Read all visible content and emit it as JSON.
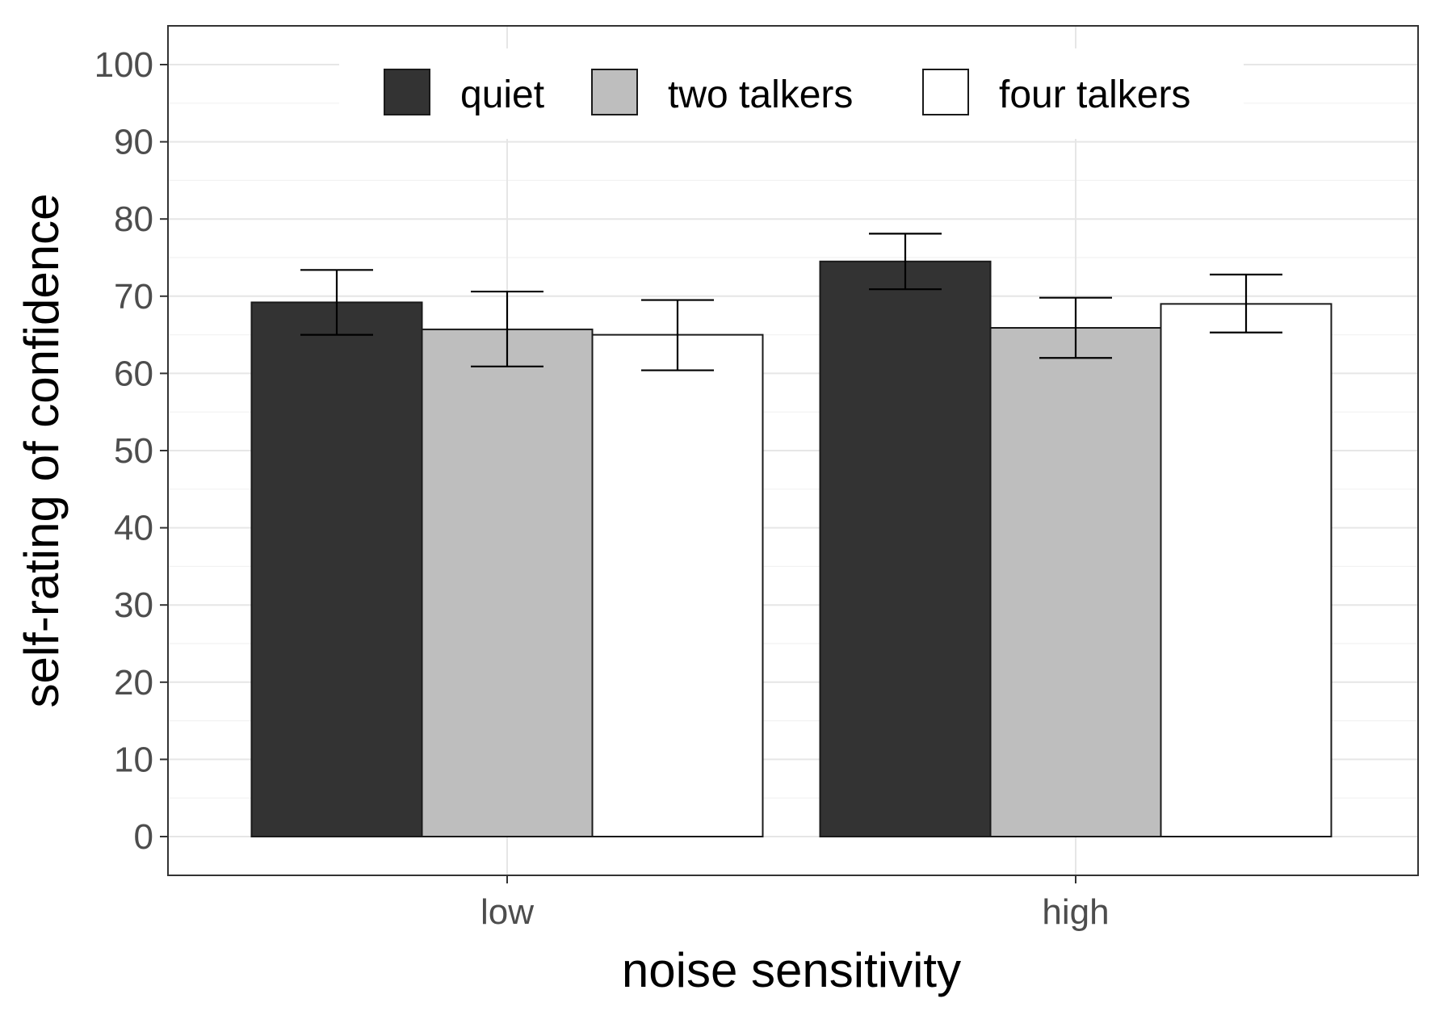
{
  "chart_data": {
    "type": "bar",
    "title": "",
    "xlabel": "noise sensitivity",
    "ylabel": "self-rating of confidence",
    "categories": [
      "low",
      "high"
    ],
    "ylim": [
      -5,
      105
    ],
    "yticks": [
      0,
      10,
      20,
      30,
      40,
      50,
      60,
      70,
      80,
      90,
      100
    ],
    "grid": true,
    "legend_position": "top-center",
    "series": [
      {
        "name": "quiet",
        "color": "#333333",
        "values": [
          69.2,
          74.5
        ],
        "error_low": [
          65.0,
          70.9
        ],
        "error_high": [
          73.4,
          78.1
        ]
      },
      {
        "name": "two talkers",
        "color": "#bebebe",
        "values": [
          65.7,
          65.9
        ],
        "error_low": [
          60.9,
          62.0
        ],
        "error_high": [
          70.6,
          69.8
        ]
      },
      {
        "name": "four talkers",
        "color": "#ffffff",
        "values": [
          65.0,
          69.0
        ],
        "error_low": [
          60.4,
          65.3
        ],
        "error_high": [
          69.5,
          72.8
        ]
      }
    ]
  }
}
